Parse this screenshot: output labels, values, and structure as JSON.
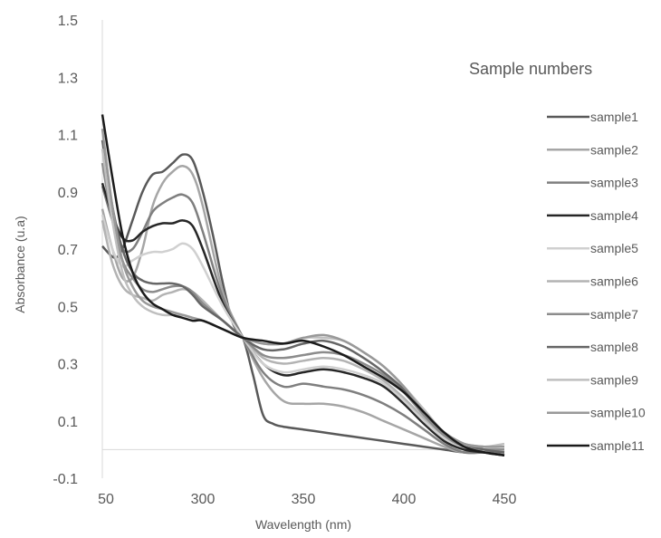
{
  "chart_data": {
    "type": "line",
    "title": "",
    "xlabel": "Wavelength (nm)",
    "ylabel": "Absorbance (u.a)",
    "xlim": [
      250,
      450
    ],
    "ylim": [
      -0.1,
      1.5
    ],
    "x_ticks": [
      "50",
      "300",
      "350",
      "400",
      "450"
    ],
    "y_ticks": [
      "-0.1",
      "0.1",
      "0.3",
      "0.5",
      "0.7",
      "0.9",
      "1.1",
      "1.3",
      "1.5"
    ],
    "grid": false,
    "legend": {
      "title": "Sample numbers",
      "placement": "right"
    },
    "series": [
      {
        "name": "sample1",
        "color": "#595959",
        "points": [
          [
            250,
            0.71
          ],
          [
            256,
            0.67
          ],
          [
            260,
            0.7
          ],
          [
            265,
            0.8
          ],
          [
            270,
            0.9
          ],
          [
            275,
            0.96
          ],
          [
            280,
            0.97
          ],
          [
            285,
            1.0
          ],
          [
            290,
            1.03
          ],
          [
            295,
            1.01
          ],
          [
            300,
            0.9
          ],
          [
            305,
            0.75
          ],
          [
            310,
            0.58
          ],
          [
            315,
            0.44
          ],
          [
            320,
            0.39
          ],
          [
            325,
            0.26
          ],
          [
            330,
            0.12
          ],
          [
            335,
            0.09
          ],
          [
            340,
            0.08
          ],
          [
            350,
            0.07
          ],
          [
            360,
            0.06
          ],
          [
            370,
            0.05
          ],
          [
            380,
            0.04
          ],
          [
            390,
            0.03
          ],
          [
            400,
            0.02
          ],
          [
            410,
            0.01
          ],
          [
            420,
            0.0
          ],
          [
            430,
            -0.01
          ],
          [
            440,
            -0.01
          ],
          [
            450,
            -0.02
          ]
        ]
      },
      {
        "name": "sample2",
        "color": "#a6a6a6",
        "points": [
          [
            250,
            0.84
          ],
          [
            255,
            0.7
          ],
          [
            260,
            0.6
          ],
          [
            265,
            0.6
          ],
          [
            270,
            0.7
          ],
          [
            275,
            0.85
          ],
          [
            280,
            0.93
          ],
          [
            285,
            0.97
          ],
          [
            290,
            0.99
          ],
          [
            295,
            0.96
          ],
          [
            300,
            0.85
          ],
          [
            310,
            0.55
          ],
          [
            320,
            0.39
          ],
          [
            330,
            0.25
          ],
          [
            340,
            0.17
          ],
          [
            350,
            0.16
          ],
          [
            360,
            0.16
          ],
          [
            370,
            0.15
          ],
          [
            380,
            0.13
          ],
          [
            390,
            0.1
          ],
          [
            400,
            0.07
          ],
          [
            410,
            0.04
          ],
          [
            420,
            0.01
          ],
          [
            430,
            -0.01
          ],
          [
            440,
            0.0
          ],
          [
            450,
            0.0
          ]
        ]
      },
      {
        "name": "sample3",
        "color": "#7f7f7f",
        "points": [
          [
            250,
            0.92
          ],
          [
            255,
            0.8
          ],
          [
            260,
            0.7
          ],
          [
            265,
            0.7
          ],
          [
            270,
            0.76
          ],
          [
            275,
            0.83
          ],
          [
            280,
            0.86
          ],
          [
            285,
            0.88
          ],
          [
            290,
            0.89
          ],
          [
            295,
            0.86
          ],
          [
            300,
            0.76
          ],
          [
            310,
            0.53
          ],
          [
            320,
            0.39
          ],
          [
            330,
            0.27
          ],
          [
            340,
            0.22
          ],
          [
            350,
            0.23
          ],
          [
            360,
            0.22
          ],
          [
            370,
            0.21
          ],
          [
            380,
            0.19
          ],
          [
            390,
            0.16
          ],
          [
            400,
            0.12
          ],
          [
            410,
            0.07
          ],
          [
            420,
            0.02
          ],
          [
            430,
            -0.01
          ],
          [
            440,
            -0.01
          ],
          [
            450,
            -0.01
          ]
        ]
      },
      {
        "name": "sample4",
        "color": "#262626",
        "points": [
          [
            250,
            0.93
          ],
          [
            255,
            0.82
          ],
          [
            260,
            0.74
          ],
          [
            265,
            0.73
          ],
          [
            270,
            0.76
          ],
          [
            275,
            0.78
          ],
          [
            280,
            0.79
          ],
          [
            285,
            0.79
          ],
          [
            290,
            0.8
          ],
          [
            295,
            0.78
          ],
          [
            300,
            0.7
          ],
          [
            310,
            0.51
          ],
          [
            320,
            0.39
          ],
          [
            330,
            0.3
          ],
          [
            340,
            0.26
          ],
          [
            350,
            0.27
          ],
          [
            360,
            0.28
          ],
          [
            370,
            0.27
          ],
          [
            380,
            0.25
          ],
          [
            390,
            0.22
          ],
          [
            400,
            0.16
          ],
          [
            410,
            0.09
          ],
          [
            420,
            0.03
          ],
          [
            430,
            0.0
          ],
          [
            440,
            -0.01
          ],
          [
            450,
            -0.02
          ]
        ]
      },
      {
        "name": "sample5",
        "color": "#d0d0d0",
        "points": [
          [
            250,
            0.82
          ],
          [
            255,
            0.7
          ],
          [
            260,
            0.64
          ],
          [
            265,
            0.66
          ],
          [
            270,
            0.68
          ],
          [
            275,
            0.69
          ],
          [
            280,
            0.69
          ],
          [
            285,
            0.7
          ],
          [
            290,
            0.72
          ],
          [
            295,
            0.7
          ],
          [
            300,
            0.64
          ],
          [
            310,
            0.5
          ],
          [
            320,
            0.39
          ],
          [
            330,
            0.3
          ],
          [
            340,
            0.27
          ],
          [
            350,
            0.28
          ],
          [
            360,
            0.29
          ],
          [
            370,
            0.28
          ],
          [
            380,
            0.26
          ],
          [
            390,
            0.23
          ],
          [
            400,
            0.17
          ],
          [
            410,
            0.1
          ],
          [
            420,
            0.04
          ],
          [
            430,
            0.01
          ],
          [
            440,
            0.01
          ],
          [
            450,
            0.01
          ]
        ]
      },
      {
        "name": "sample6",
        "color": "#b3b3b3",
        "points": [
          [
            250,
            0.8
          ],
          [
            255,
            0.65
          ],
          [
            260,
            0.57
          ],
          [
            265,
            0.54
          ],
          [
            270,
            0.53
          ],
          [
            275,
            0.52
          ],
          [
            280,
            0.54
          ],
          [
            285,
            0.55
          ],
          [
            290,
            0.56
          ],
          [
            295,
            0.55
          ],
          [
            300,
            0.52
          ],
          [
            310,
            0.45
          ],
          [
            320,
            0.39
          ],
          [
            330,
            0.32
          ],
          [
            340,
            0.3
          ],
          [
            350,
            0.31
          ],
          [
            360,
            0.32
          ],
          [
            370,
            0.31
          ],
          [
            380,
            0.28
          ],
          [
            390,
            0.24
          ],
          [
            400,
            0.18
          ],
          [
            410,
            0.11
          ],
          [
            420,
            0.05
          ],
          [
            430,
            0.02
          ],
          [
            440,
            0.01
          ],
          [
            450,
            0.01
          ]
        ]
      },
      {
        "name": "sample7",
        "color": "#8c8c8c",
        "points": [
          [
            250,
            1.0
          ],
          [
            255,
            0.8
          ],
          [
            260,
            0.66
          ],
          [
            265,
            0.6
          ],
          [
            270,
            0.56
          ],
          [
            275,
            0.55
          ],
          [
            280,
            0.56
          ],
          [
            285,
            0.57
          ],
          [
            290,
            0.57
          ],
          [
            295,
            0.55
          ],
          [
            300,
            0.51
          ],
          [
            310,
            0.45
          ],
          [
            320,
            0.39
          ],
          [
            330,
            0.33
          ],
          [
            340,
            0.32
          ],
          [
            350,
            0.33
          ],
          [
            360,
            0.34
          ],
          [
            370,
            0.33
          ],
          [
            380,
            0.3
          ],
          [
            390,
            0.26
          ],
          [
            400,
            0.2
          ],
          [
            410,
            0.12
          ],
          [
            420,
            0.05
          ],
          [
            430,
            0.01
          ],
          [
            440,
            0.0
          ],
          [
            450,
            0.0
          ]
        ]
      },
      {
        "name": "sample8",
        "color": "#666666",
        "points": [
          [
            250,
            1.08
          ],
          [
            255,
            0.85
          ],
          [
            260,
            0.7
          ],
          [
            265,
            0.62
          ],
          [
            270,
            0.59
          ],
          [
            275,
            0.58
          ],
          [
            280,
            0.58
          ],
          [
            285,
            0.58
          ],
          [
            290,
            0.57
          ],
          [
            295,
            0.54
          ],
          [
            300,
            0.5
          ],
          [
            310,
            0.45
          ],
          [
            320,
            0.39
          ],
          [
            330,
            0.35
          ],
          [
            340,
            0.35
          ],
          [
            350,
            0.37
          ],
          [
            360,
            0.38
          ],
          [
            370,
            0.36
          ],
          [
            380,
            0.32
          ],
          [
            390,
            0.27
          ],
          [
            400,
            0.21
          ],
          [
            410,
            0.13
          ],
          [
            420,
            0.06
          ],
          [
            430,
            0.02
          ],
          [
            440,
            0.0
          ],
          [
            450,
            -0.01
          ]
        ]
      },
      {
        "name": "sample9",
        "color": "#bfbfbf",
        "points": [
          [
            250,
            1.05
          ],
          [
            255,
            0.8
          ],
          [
            260,
            0.62
          ],
          [
            265,
            0.54
          ],
          [
            270,
            0.5
          ],
          [
            275,
            0.48
          ],
          [
            280,
            0.47
          ],
          [
            285,
            0.47
          ],
          [
            290,
            0.47
          ],
          [
            295,
            0.46
          ],
          [
            300,
            0.45
          ],
          [
            310,
            0.42
          ],
          [
            320,
            0.39
          ],
          [
            330,
            0.37
          ],
          [
            340,
            0.37
          ],
          [
            350,
            0.39
          ],
          [
            360,
            0.39
          ],
          [
            370,
            0.38
          ],
          [
            380,
            0.34
          ],
          [
            390,
            0.29
          ],
          [
            400,
            0.22
          ],
          [
            410,
            0.14
          ],
          [
            420,
            0.06
          ],
          [
            430,
            0.02
          ],
          [
            440,
            0.01
          ],
          [
            450,
            0.02
          ]
        ]
      },
      {
        "name": "sample10",
        "color": "#999999",
        "points": [
          [
            250,
            1.12
          ],
          [
            255,
            0.85
          ],
          [
            260,
            0.66
          ],
          [
            265,
            0.57
          ],
          [
            270,
            0.52
          ],
          [
            275,
            0.5
          ],
          [
            280,
            0.49
          ],
          [
            285,
            0.48
          ],
          [
            290,
            0.47
          ],
          [
            295,
            0.46
          ],
          [
            300,
            0.45
          ],
          [
            310,
            0.42
          ],
          [
            320,
            0.39
          ],
          [
            330,
            0.37
          ],
          [
            340,
            0.37
          ],
          [
            350,
            0.39
          ],
          [
            360,
            0.4
          ],
          [
            370,
            0.38
          ],
          [
            380,
            0.34
          ],
          [
            390,
            0.29
          ],
          [
            400,
            0.22
          ],
          [
            410,
            0.13
          ],
          [
            420,
            0.06
          ],
          [
            430,
            0.02
          ],
          [
            440,
            0.01
          ],
          [
            450,
            0.01
          ]
        ]
      },
      {
        "name": "sample11",
        "color": "#1a1a1a",
        "points": [
          [
            250,
            1.17
          ],
          [
            255,
            0.95
          ],
          [
            260,
            0.75
          ],
          [
            265,
            0.62
          ],
          [
            270,
            0.55
          ],
          [
            275,
            0.51
          ],
          [
            280,
            0.49
          ],
          [
            285,
            0.47
          ],
          [
            290,
            0.46
          ],
          [
            295,
            0.45
          ],
          [
            300,
            0.45
          ],
          [
            310,
            0.42
          ],
          [
            320,
            0.39
          ],
          [
            330,
            0.38
          ],
          [
            340,
            0.37
          ],
          [
            350,
            0.38
          ],
          [
            360,
            0.36
          ],
          [
            370,
            0.33
          ],
          [
            380,
            0.29
          ],
          [
            390,
            0.25
          ],
          [
            400,
            0.2
          ],
          [
            410,
            0.13
          ],
          [
            420,
            0.06
          ],
          [
            430,
            0.01
          ],
          [
            440,
            -0.01
          ],
          [
            450,
            -0.02
          ]
        ]
      }
    ]
  }
}
